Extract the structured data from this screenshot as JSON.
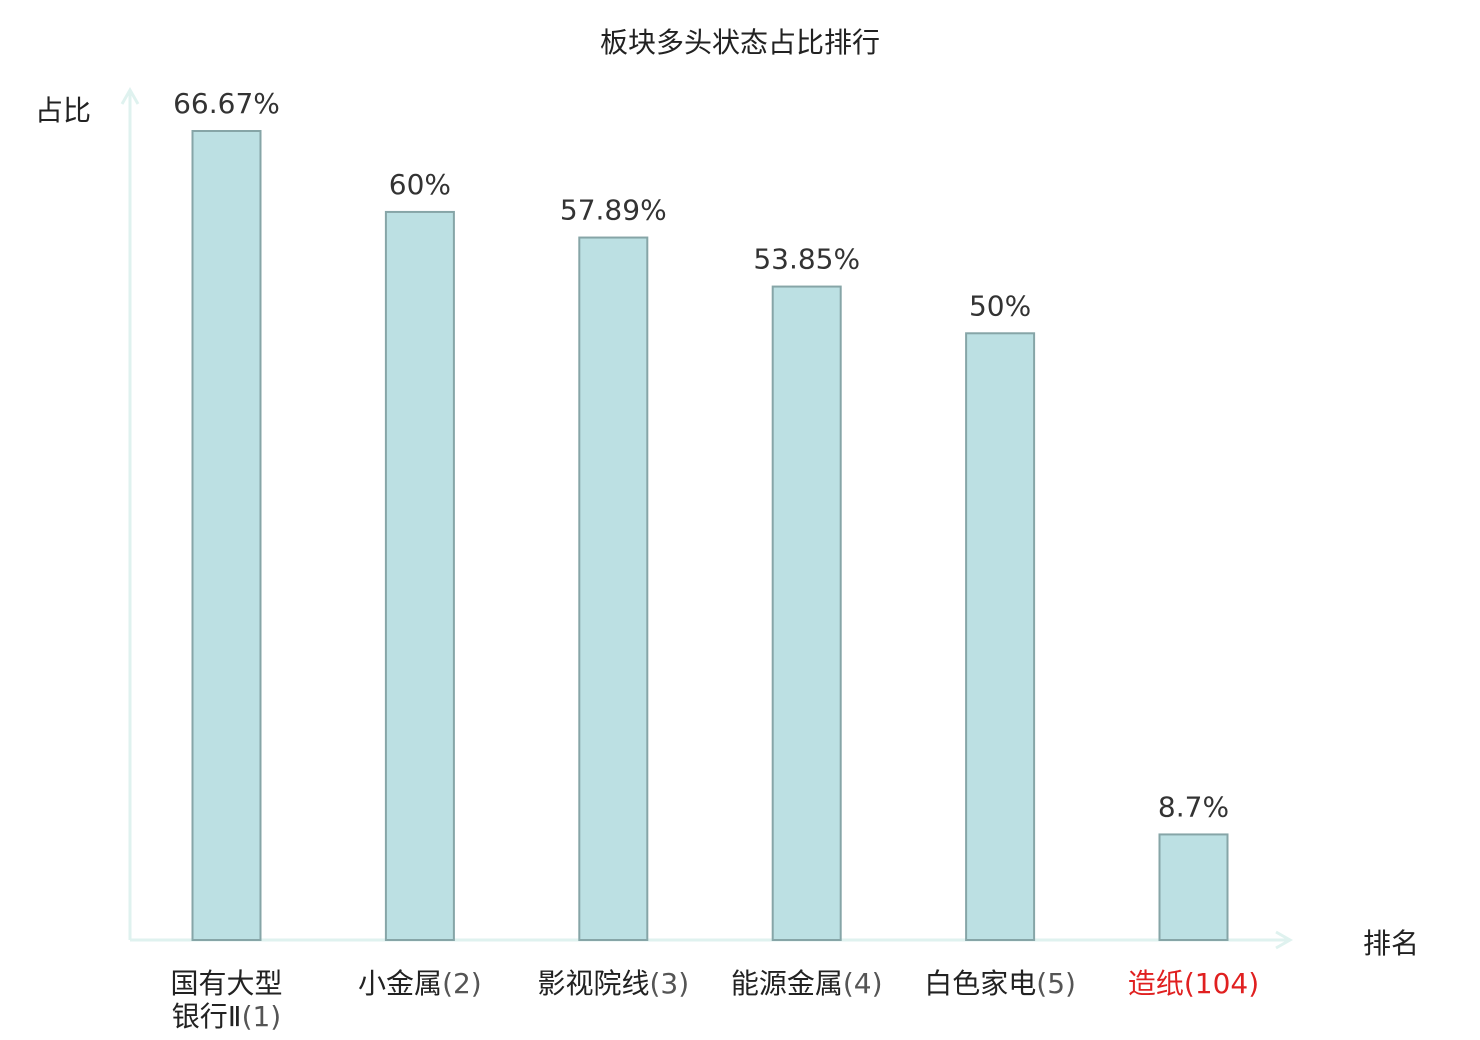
{
  "chart_data": {
    "type": "bar",
    "title": "板块多头状态占比排行",
    "ylabel": "占比",
    "xlabel": "排名",
    "ylim": [
      0,
      70
    ],
    "grid": false,
    "legend": "none",
    "categories": [
      {
        "name_lines": [
          "国有大型",
          "银行Ⅱ"
        ],
        "rank": "(1)"
      },
      {
        "name_lines": [
          "小金属"
        ],
        "rank": "(2)"
      },
      {
        "name_lines": [
          "影视院线"
        ],
        "rank": "(3)"
      },
      {
        "name_lines": [
          "能源金属"
        ],
        "rank": "(4)"
      },
      {
        "name_lines": [
          "白色家电"
        ],
        "rank": "(5)"
      },
      {
        "name_lines": [
          "造纸"
        ],
        "rank": "(104)",
        "highlight": true
      }
    ],
    "values": [
      66.67,
      60,
      57.89,
      53.85,
      50,
      8.7
    ],
    "value_labels": [
      "66.67%",
      "60%",
      "57.89%",
      "53.85%",
      "50%",
      "8.7%"
    ]
  },
  "colors": {
    "bar_fill": "#bce0e3",
    "bar_stroke": "#86a5a7",
    "axis": "#dff2ef",
    "text": "#333333",
    "highlight_text": "#e02020"
  }
}
